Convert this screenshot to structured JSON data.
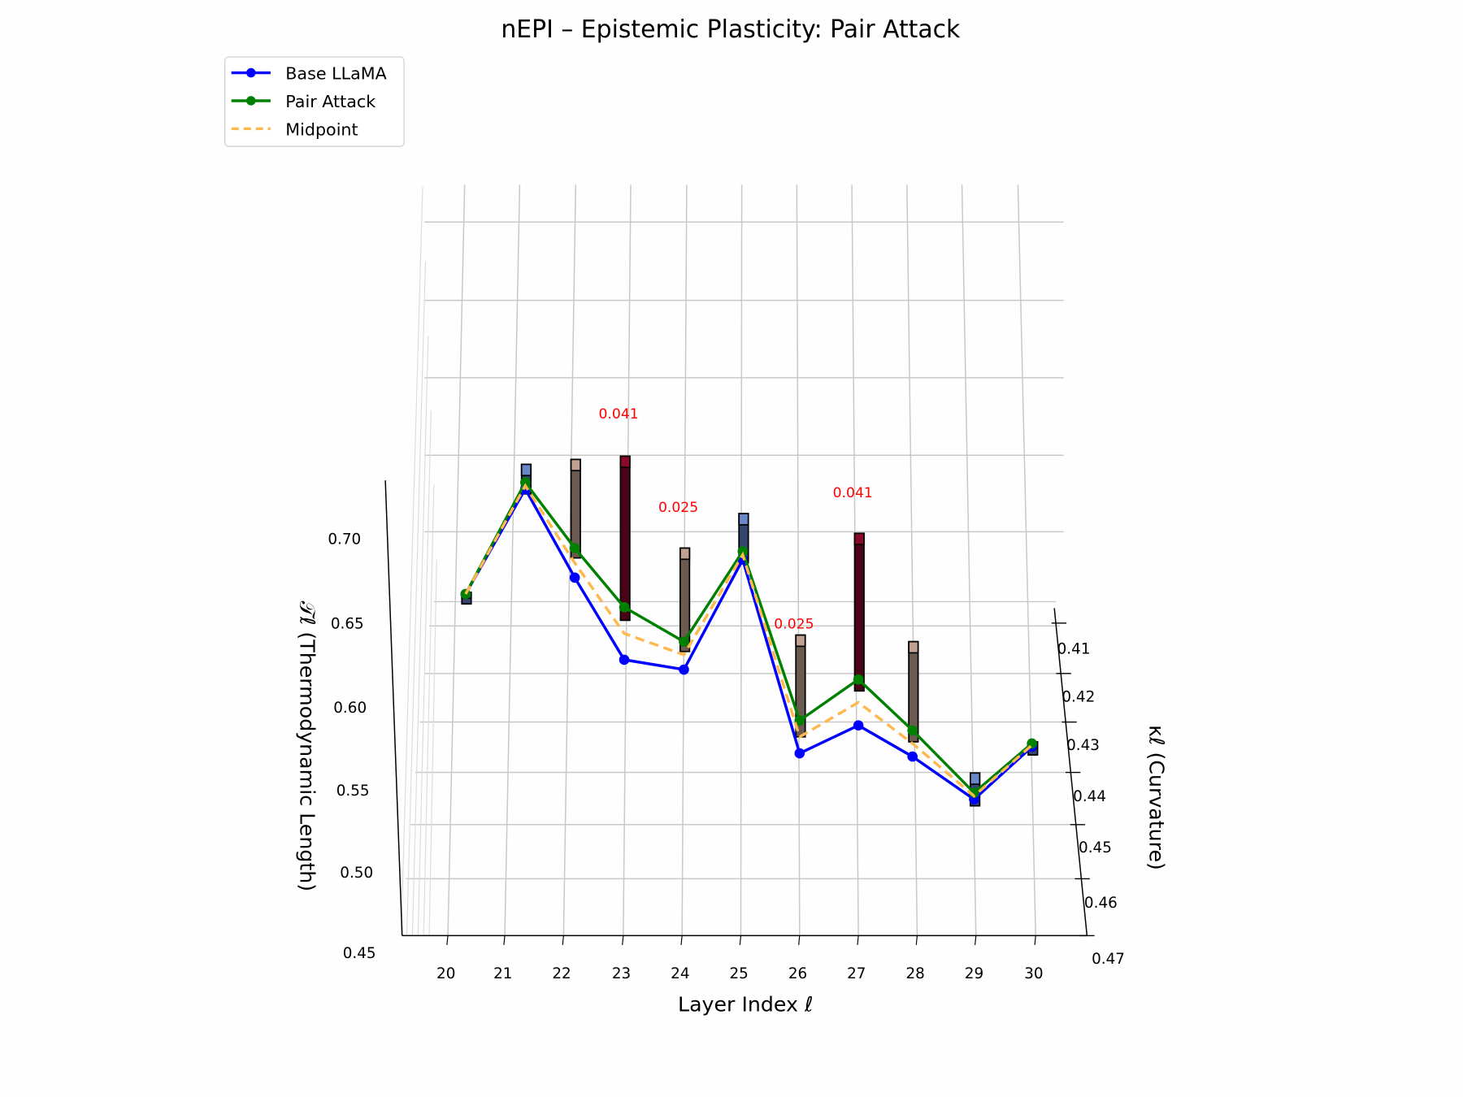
{
  "chart_data": {
    "type": "line",
    "projection": "3d",
    "title": "nEPI – Epistemic Plasticity: Pair Attack",
    "xlabel": "Layer Index ℓ",
    "ylabel": "κℓ (Curvature)",
    "zlabel": "𝒯ℓ (Thermodynamic Length)",
    "x": [
      20,
      21,
      22,
      23,
      24,
      25,
      26,
      27,
      28,
      29,
      30
    ],
    "x_ticks": [
      "20",
      "21",
      "22",
      "23",
      "24",
      "25",
      "26",
      "27",
      "28",
      "29",
      "30"
    ],
    "y_ticks": [
      "0.41",
      "0.42",
      "0.43",
      "0.44",
      "0.45",
      "0.46",
      "0.47"
    ],
    "z_ticks": [
      "0.45",
      "0.50",
      "0.55",
      "0.60",
      "0.65",
      "0.70"
    ],
    "zlim": [
      0.45,
      0.72
    ],
    "series": [
      {
        "name": "Base LLaMA",
        "color": "#0000ff",
        "style": "solid-marker",
        "values": [
          0.666,
          0.73,
          0.676,
          0.626,
          0.62,
          0.687,
          0.569,
          0.586,
          0.567,
          0.541,
          0.573
        ]
      },
      {
        "name": "Pair Attack",
        "color": "#008000",
        "style": "solid-marker",
        "values": [
          0.666,
          0.734,
          0.694,
          0.658,
          0.637,
          0.692,
          0.589,
          0.614,
          0.583,
          0.545,
          0.575
        ]
      },
      {
        "name": "Midpoint",
        "color": "#ffb84d",
        "style": "dashed",
        "values": [
          0.666,
          0.732,
          0.685,
          0.642,
          0.629,
          0.69,
          0.579,
          0.6,
          0.575,
          0.543,
          0.574
        ]
      }
    ],
    "bars": [
      {
        "layer": 20,
        "bottom": 0.66,
        "top": 0.667,
        "kind": "blue"
      },
      {
        "layer": 21,
        "bottom": 0.727,
        "top": 0.745,
        "kind": "blue"
      },
      {
        "layer": 22,
        "bottom": 0.688,
        "top": 0.748,
        "kind": "brown"
      },
      {
        "layer": 23,
        "bottom": 0.65,
        "top": 0.75,
        "kind": "red"
      },
      {
        "layer": 24,
        "bottom": 0.631,
        "top": 0.694,
        "kind": "brown"
      },
      {
        "layer": 25,
        "bottom": 0.685,
        "top": 0.715,
        "kind": "blue"
      },
      {
        "layer": 26,
        "bottom": 0.579,
        "top": 0.641,
        "kind": "brown"
      },
      {
        "layer": 27,
        "bottom": 0.607,
        "top": 0.703,
        "kind": "red"
      },
      {
        "layer": 28,
        "bottom": 0.576,
        "top": 0.637,
        "kind": "brown"
      },
      {
        "layer": 29,
        "bottom": 0.537,
        "top": 0.557,
        "kind": "blue"
      },
      {
        "layer": 30,
        "bottom": 0.568,
        "top": 0.576,
        "kind": "blue"
      }
    ],
    "bar_colors": {
      "blue": {
        "body": "#34466f",
        "cap": "#6a88c8"
      },
      "brown": {
        "body": "#6b5a50",
        "cap": "#c0a090"
      },
      "red": {
        "body": "#4a0418",
        "cap": "#8b0a28"
      }
    },
    "annotations": [
      {
        "layer": 23,
        "text": "0.041",
        "z": 0.773
      },
      {
        "layer": 24,
        "text": "0.025",
        "z": 0.716
      },
      {
        "layer": 26,
        "text": "0.025",
        "z": 0.645
      },
      {
        "layer": 27,
        "text": "0.041",
        "z": 0.725
      }
    ],
    "annotation_color": "#ff0000",
    "legend": {
      "position": "top-left",
      "entries": [
        "Base LLaMA",
        "Pair Attack",
        "Midpoint"
      ]
    },
    "grid": true
  }
}
